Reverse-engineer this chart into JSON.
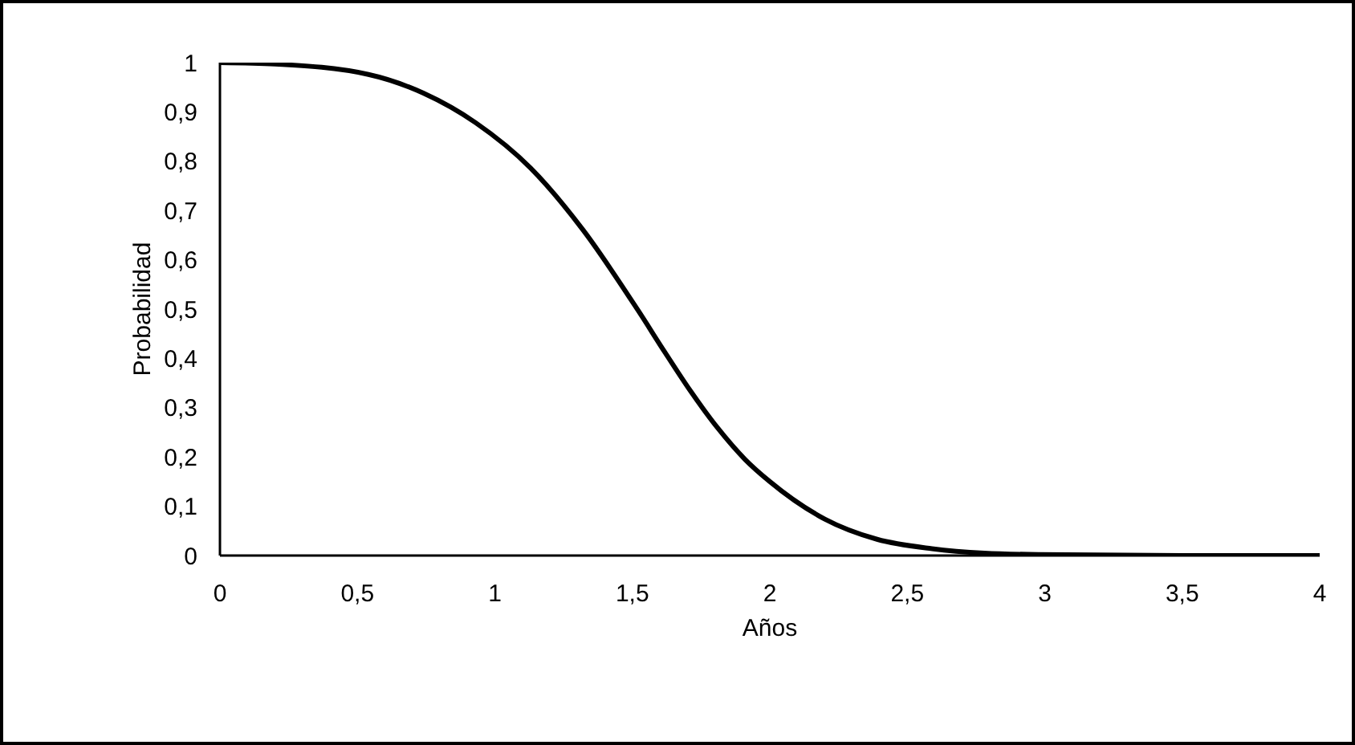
{
  "chart_data": {
    "type": "line",
    "xlabel": "Años",
    "ylabel": "Probabilidad",
    "x": [
      0,
      0.2,
      0.54,
      0.74,
      0.93,
      1.13,
      1.32,
      1.52,
      1.62,
      1.71,
      1.81,
      1.91,
      2.0,
      2.2,
      2.39,
      2.59,
      2.78,
      2.98,
      3.5,
      4
    ],
    "series": [
      {
        "color": "#000000",
        "values": [
          1,
          0.997,
          0.976,
          0.938,
          0.878,
          0.786,
          0.661,
          0.498,
          0.411,
          0.335,
          0.259,
          0.195,
          0.15,
          0.074,
          0.033,
          0.014,
          0.005,
          0.002,
          0,
          0
        ]
      }
    ],
    "xlim": [
      0,
      4
    ],
    "xticks": [
      0,
      {
        "value": 0.5,
        "label": "0,5"
      },
      1,
      {
        "value": 1.5,
        "label": "1,5"
      },
      2,
      {
        "value": 2.5,
        "label": "2,5"
      },
      3,
      {
        "value": 3.5,
        "label": "3,5"
      },
      4
    ],
    "ylim": [
      0,
      1
    ],
    "yticks": [
      0,
      {
        "value": 0.1,
        "label": "0,1"
      },
      {
        "value": 0.2,
        "label": "0,2"
      },
      {
        "value": 0.3,
        "label": "0,3"
      },
      {
        "value": 0.4,
        "label": "0,4"
      },
      {
        "value": 0.5,
        "label": "0,5"
      },
      {
        "value": 0.6,
        "label": "0,6"
      },
      {
        "value": 0.7,
        "label": "0,7"
      },
      {
        "value": 0.8,
        "label": "0,8"
      },
      {
        "value": 0.9,
        "label": "0,9"
      },
      1
    ],
    "grid": false,
    "marker": "none",
    "line_style": "solid"
  }
}
